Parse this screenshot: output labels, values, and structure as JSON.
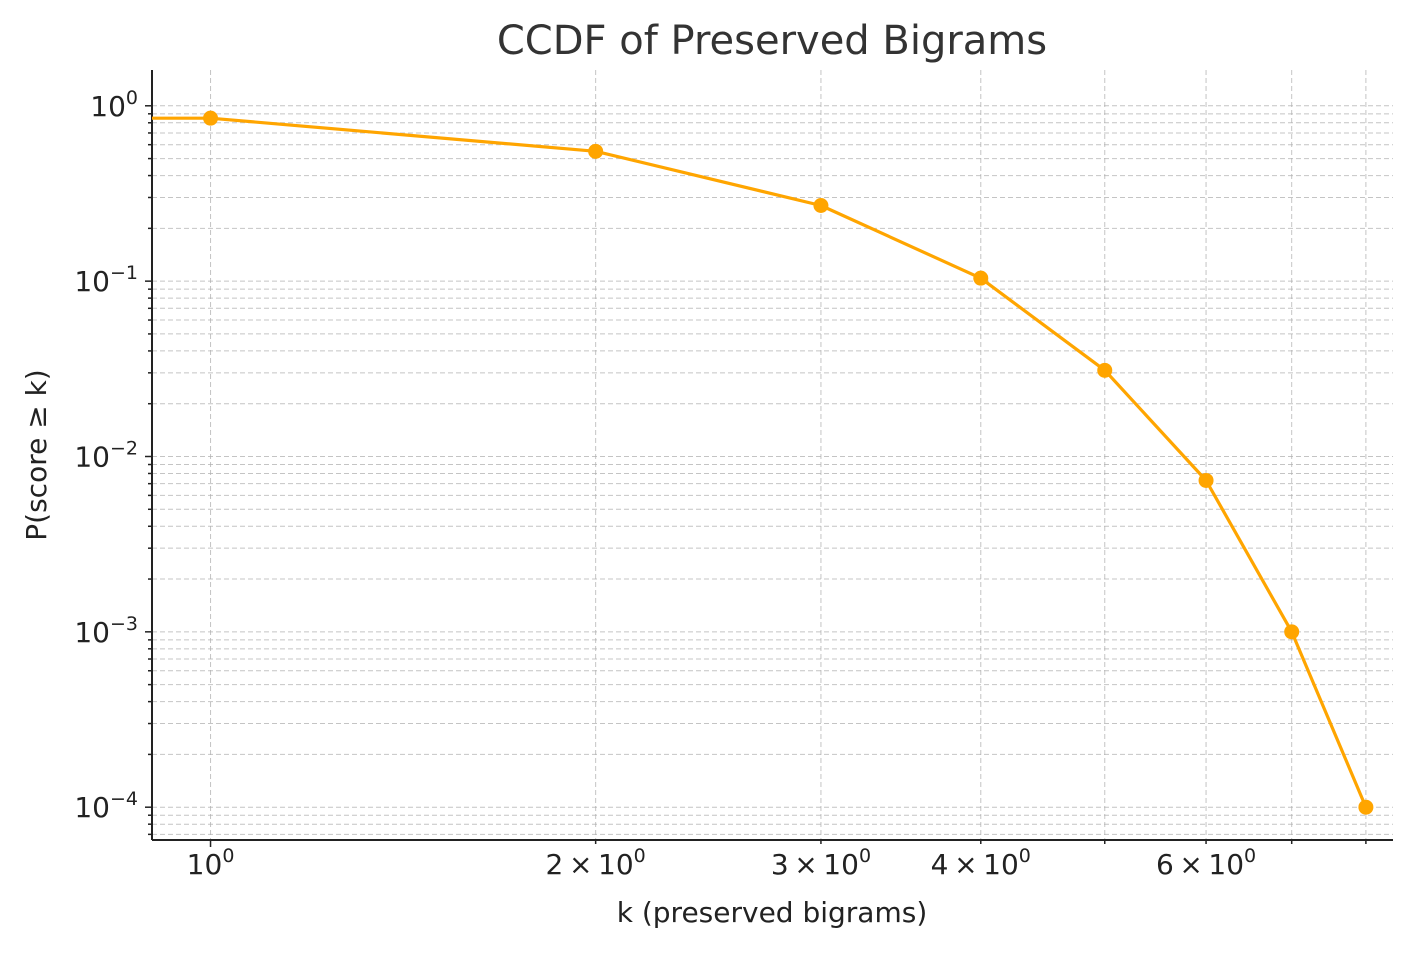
{
  "chart_data": {
    "type": "line",
    "title": "CCDF of Preserved Bigrams",
    "xlabel": "k (preserved bigrams)",
    "ylabel": "P(score ≥ k)",
    "xscale": "log",
    "yscale": "log",
    "xlim": [
      0.9,
      8.4
    ],
    "ylim": [
      6.5e-05,
      1.6
    ],
    "grid": true,
    "legend": "none",
    "x_ticks": [
      {
        "value": 1,
        "base": "10",
        "exp": "0"
      },
      {
        "value": 2,
        "mant": "2",
        "base": "10",
        "exp": "0"
      },
      {
        "value": 3,
        "mant": "3",
        "base": "10",
        "exp": "0"
      },
      {
        "value": 4,
        "mant": "4",
        "base": "10",
        "exp": "0"
      },
      {
        "value": 6,
        "mant": "6",
        "base": "10",
        "exp": "0"
      }
    ],
    "y_ticks": [
      {
        "value": 1,
        "base": "10",
        "exp": "0"
      },
      {
        "value": 0.1,
        "base": "10",
        "exp": "−1"
      },
      {
        "value": 0.01,
        "base": "10",
        "exp": "−2"
      },
      {
        "value": 0.001,
        "base": "10",
        "exp": "−3"
      },
      {
        "value": 0.0001,
        "base": "10",
        "exp": "−4"
      }
    ],
    "series": [
      {
        "color": "#FFA500",
        "x": [
          1,
          2,
          3,
          4,
          5,
          6,
          7,
          8
        ],
        "y": [
          0.85,
          0.55,
          0.27,
          0.104,
          0.031,
          0.0073,
          0.001,
          0.0001
        ]
      }
    ]
  }
}
